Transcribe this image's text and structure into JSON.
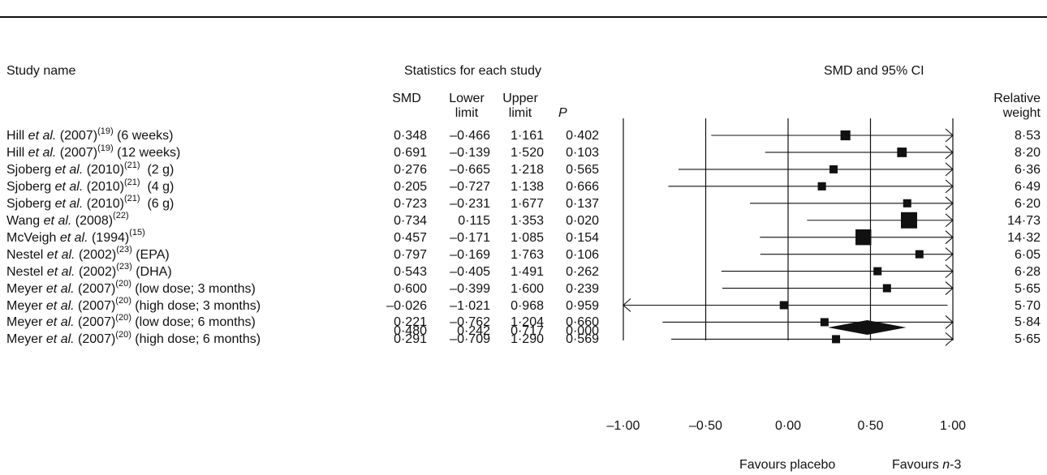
{
  "headers": {
    "study_name": "Study name",
    "stats_group": "Statistics for each study",
    "smd_ci": "SMD and 95% CI",
    "smd": "SMD",
    "lower_1": "Lower",
    "lower_2": "limit",
    "upper_1": "Upper",
    "upper_2": "limit",
    "p": "P",
    "weight_1": "Relative",
    "weight_2": "weight"
  },
  "studies": [
    {
      "author": "Hill",
      "etal": " et al.",
      "year": " (2007)",
      "ref": "(19)",
      "suffix": " (6 weeks)",
      "smd": "0·348",
      "lower": "–0·466",
      "upper": "1·161",
      "p": "0·402",
      "weight": "8·53"
    },
    {
      "author": "Hill",
      "etal": " et al.",
      "year": " (2007)",
      "ref": "(19)",
      "suffix": " (12 weeks)",
      "smd": "0·691",
      "lower": "–0·139",
      "upper": "1·520",
      "p": "0·103",
      "weight": "8·20"
    },
    {
      "author": "Sjoberg",
      "etal": " et al.",
      "year": " (2010)",
      "ref": "(21)",
      "suffix": "  (2 g)",
      "smd": "0·276",
      "lower": "–0·665",
      "upper": "1·218",
      "p": "0·565",
      "weight": "6·36"
    },
    {
      "author": "Sjoberg",
      "etal": " et al.",
      "year": " (2010)",
      "ref": "(21)",
      "suffix": "  (4 g)",
      "smd": "0·205",
      "lower": "–0·727",
      "upper": "1·138",
      "p": "0·666",
      "weight": "6·49"
    },
    {
      "author": "Sjoberg",
      "etal": " et al.",
      "year": " (2010)",
      "ref": "(21)",
      "suffix": "  (6 g)",
      "smd": "0·723",
      "lower": "–0·231",
      "upper": "1·677",
      "p": "0·137",
      "weight": "6·20"
    },
    {
      "author": "Wang",
      "etal": " et al.",
      "year": " (2008)",
      "ref": "(22)",
      "suffix": "",
      "smd": "0·734",
      "lower": "0·115",
      "upper": "1·353",
      "p": "0·020",
      "weight": "14·73"
    },
    {
      "author": "McVeigh",
      "etal": " et al.",
      "year": " (1994)",
      "ref": "(15)",
      "suffix": "",
      "smd": "0·457",
      "lower": "–0·171",
      "upper": "1·085",
      "p": "0·154",
      "weight": "14·32"
    },
    {
      "author": "Nestel",
      "etal": " et al.",
      "year": " (2002)",
      "ref": "(23)",
      "suffix": " (EPA)",
      "smd": "0·797",
      "lower": "–0·169",
      "upper": "1·763",
      "p": "0·106",
      "weight": "6·05"
    },
    {
      "author": "Nestel",
      "etal": " et al.",
      "year": " (2002)",
      "ref": "(23)",
      "suffix": " (DHA)",
      "smd": "0·543",
      "lower": "–0·405",
      "upper": "1·491",
      "p": "0·262",
      "weight": "6·28"
    },
    {
      "author": "Meyer",
      "etal": " et al.",
      "year": " (2007)",
      "ref": "(20)",
      "suffix": " (low dose; 3 months)",
      "smd": "0·600",
      "lower": "–0·399",
      "upper": "1·600",
      "p": "0·239",
      "weight": "5·65"
    },
    {
      "author": "Meyer",
      "etal": " et al.",
      "year": " (2007)",
      "ref": "(20)",
      "suffix": " (high dose; 3 months)",
      "smd": "–0·026",
      "lower": "–1·021",
      "upper": "0·968",
      "p": "0·959",
      "weight": "5·70"
    },
    {
      "author": "Meyer",
      "etal": " et al.",
      "year": " (2007)",
      "ref": "(20)",
      "suffix": " (low dose; 6 months)",
      "smd": "0·221",
      "lower": "–0·762",
      "upper": "1·204",
      "p": "0·660",
      "weight": "5·84"
    },
    {
      "author": "Meyer",
      "etal": " et al.",
      "year": " (2007)",
      "ref": "(20)",
      "suffix": " (high dose; 6 months)",
      "smd": "0·291",
      "lower": "–0·709",
      "upper": "1·290",
      "p": "0·569",
      "weight": "5·65"
    }
  ],
  "summary": {
    "smd": "0·480",
    "lower": "0·242",
    "upper": "0·717",
    "p": "0·000"
  },
  "axis": {
    "ticks": [
      "–1·00",
      "–0·50",
      "0·00",
      "0·50",
      "1·00"
    ],
    "favours_left": "Favours placebo",
    "favours_right_prefix": "Favours ",
    "favours_right_italic": "n",
    "favours_right_suffix": "-3"
  },
  "chart_data": {
    "type": "forest",
    "xlim": [
      -1.0,
      1.0
    ],
    "tick_values": [
      -1.0,
      -0.5,
      0.0,
      0.5,
      1.0
    ],
    "points": [
      {
        "smd": 0.348,
        "lower": -0.466,
        "upper": 1.161,
        "weight": 8.53
      },
      {
        "smd": 0.691,
        "lower": -0.139,
        "upper": 1.52,
        "weight": 8.2
      },
      {
        "smd": 0.276,
        "lower": -0.665,
        "upper": 1.218,
        "weight": 6.36
      },
      {
        "smd": 0.205,
        "lower": -0.727,
        "upper": 1.138,
        "weight": 6.49
      },
      {
        "smd": 0.723,
        "lower": -0.231,
        "upper": 1.677,
        "weight": 6.2
      },
      {
        "smd": 0.734,
        "lower": 0.115,
        "upper": 1.353,
        "weight": 14.73
      },
      {
        "smd": 0.457,
        "lower": -0.171,
        "upper": 1.085,
        "weight": 14.32
      },
      {
        "smd": 0.797,
        "lower": -0.169,
        "upper": 1.763,
        "weight": 6.05
      },
      {
        "smd": 0.543,
        "lower": -0.405,
        "upper": 1.491,
        "weight": 6.28
      },
      {
        "smd": 0.6,
        "lower": -0.399,
        "upper": 1.6,
        "weight": 5.65
      },
      {
        "smd": -0.026,
        "lower": -1.021,
        "upper": 0.968,
        "weight": 5.7
      },
      {
        "smd": 0.221,
        "lower": -0.762,
        "upper": 1.204,
        "weight": 5.84
      },
      {
        "smd": 0.291,
        "lower": -0.709,
        "upper": 1.29,
        "weight": 5.65
      }
    ],
    "summary": {
      "smd": 0.48,
      "lower": 0.242,
      "upper": 0.717
    }
  }
}
